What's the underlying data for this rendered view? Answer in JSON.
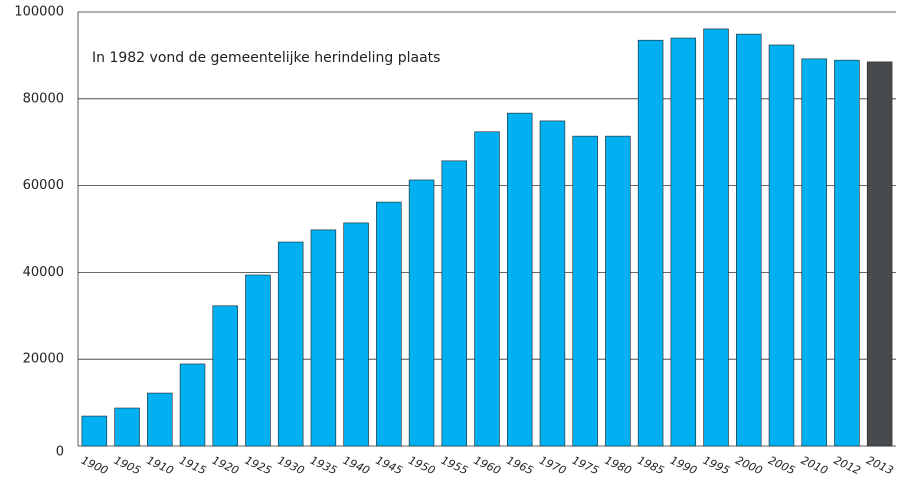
{
  "chart_data": {
    "type": "bar",
    "annotation": "In 1982 vond de gemeentelijke herindeling plaats",
    "categories": [
      "1900",
      "1905",
      "1910",
      "1915",
      "1920",
      "1925",
      "1930",
      "1935",
      "1940",
      "1945",
      "1950",
      "1955",
      "1960",
      "1965",
      "1970",
      "1975",
      "1980",
      "1985",
      "1990",
      "1995",
      "2000",
      "2005",
      "2010",
      "2012",
      "2013"
    ],
    "values": [
      6900,
      8750,
      12200,
      18900,
      32300,
      39400,
      47000,
      49800,
      51400,
      56200,
      61300,
      65700,
      72400,
      76700,
      74900,
      71400,
      71400,
      93500,
      94000,
      96100,
      94900,
      92400,
      89200,
      88900,
      88500
    ],
    "colors": [
      "#00b0f0",
      "#00b0f0",
      "#00b0f0",
      "#00b0f0",
      "#00b0f0",
      "#00b0f0",
      "#00b0f0",
      "#00b0f0",
      "#00b0f0",
      "#00b0f0",
      "#00b0f0",
      "#00b0f0",
      "#00b0f0",
      "#00b0f0",
      "#00b0f0",
      "#00b0f0",
      "#00b0f0",
      "#00b0f0",
      "#00b0f0",
      "#00b0f0",
      "#00b0f0",
      "#00b0f0",
      "#00b0f0",
      "#00b0f0",
      "#474b4e"
    ],
    "ylim": [
      0,
      100000
    ],
    "yticks": [
      0,
      20000,
      40000,
      60000,
      80000,
      100000
    ],
    "grid": true
  }
}
